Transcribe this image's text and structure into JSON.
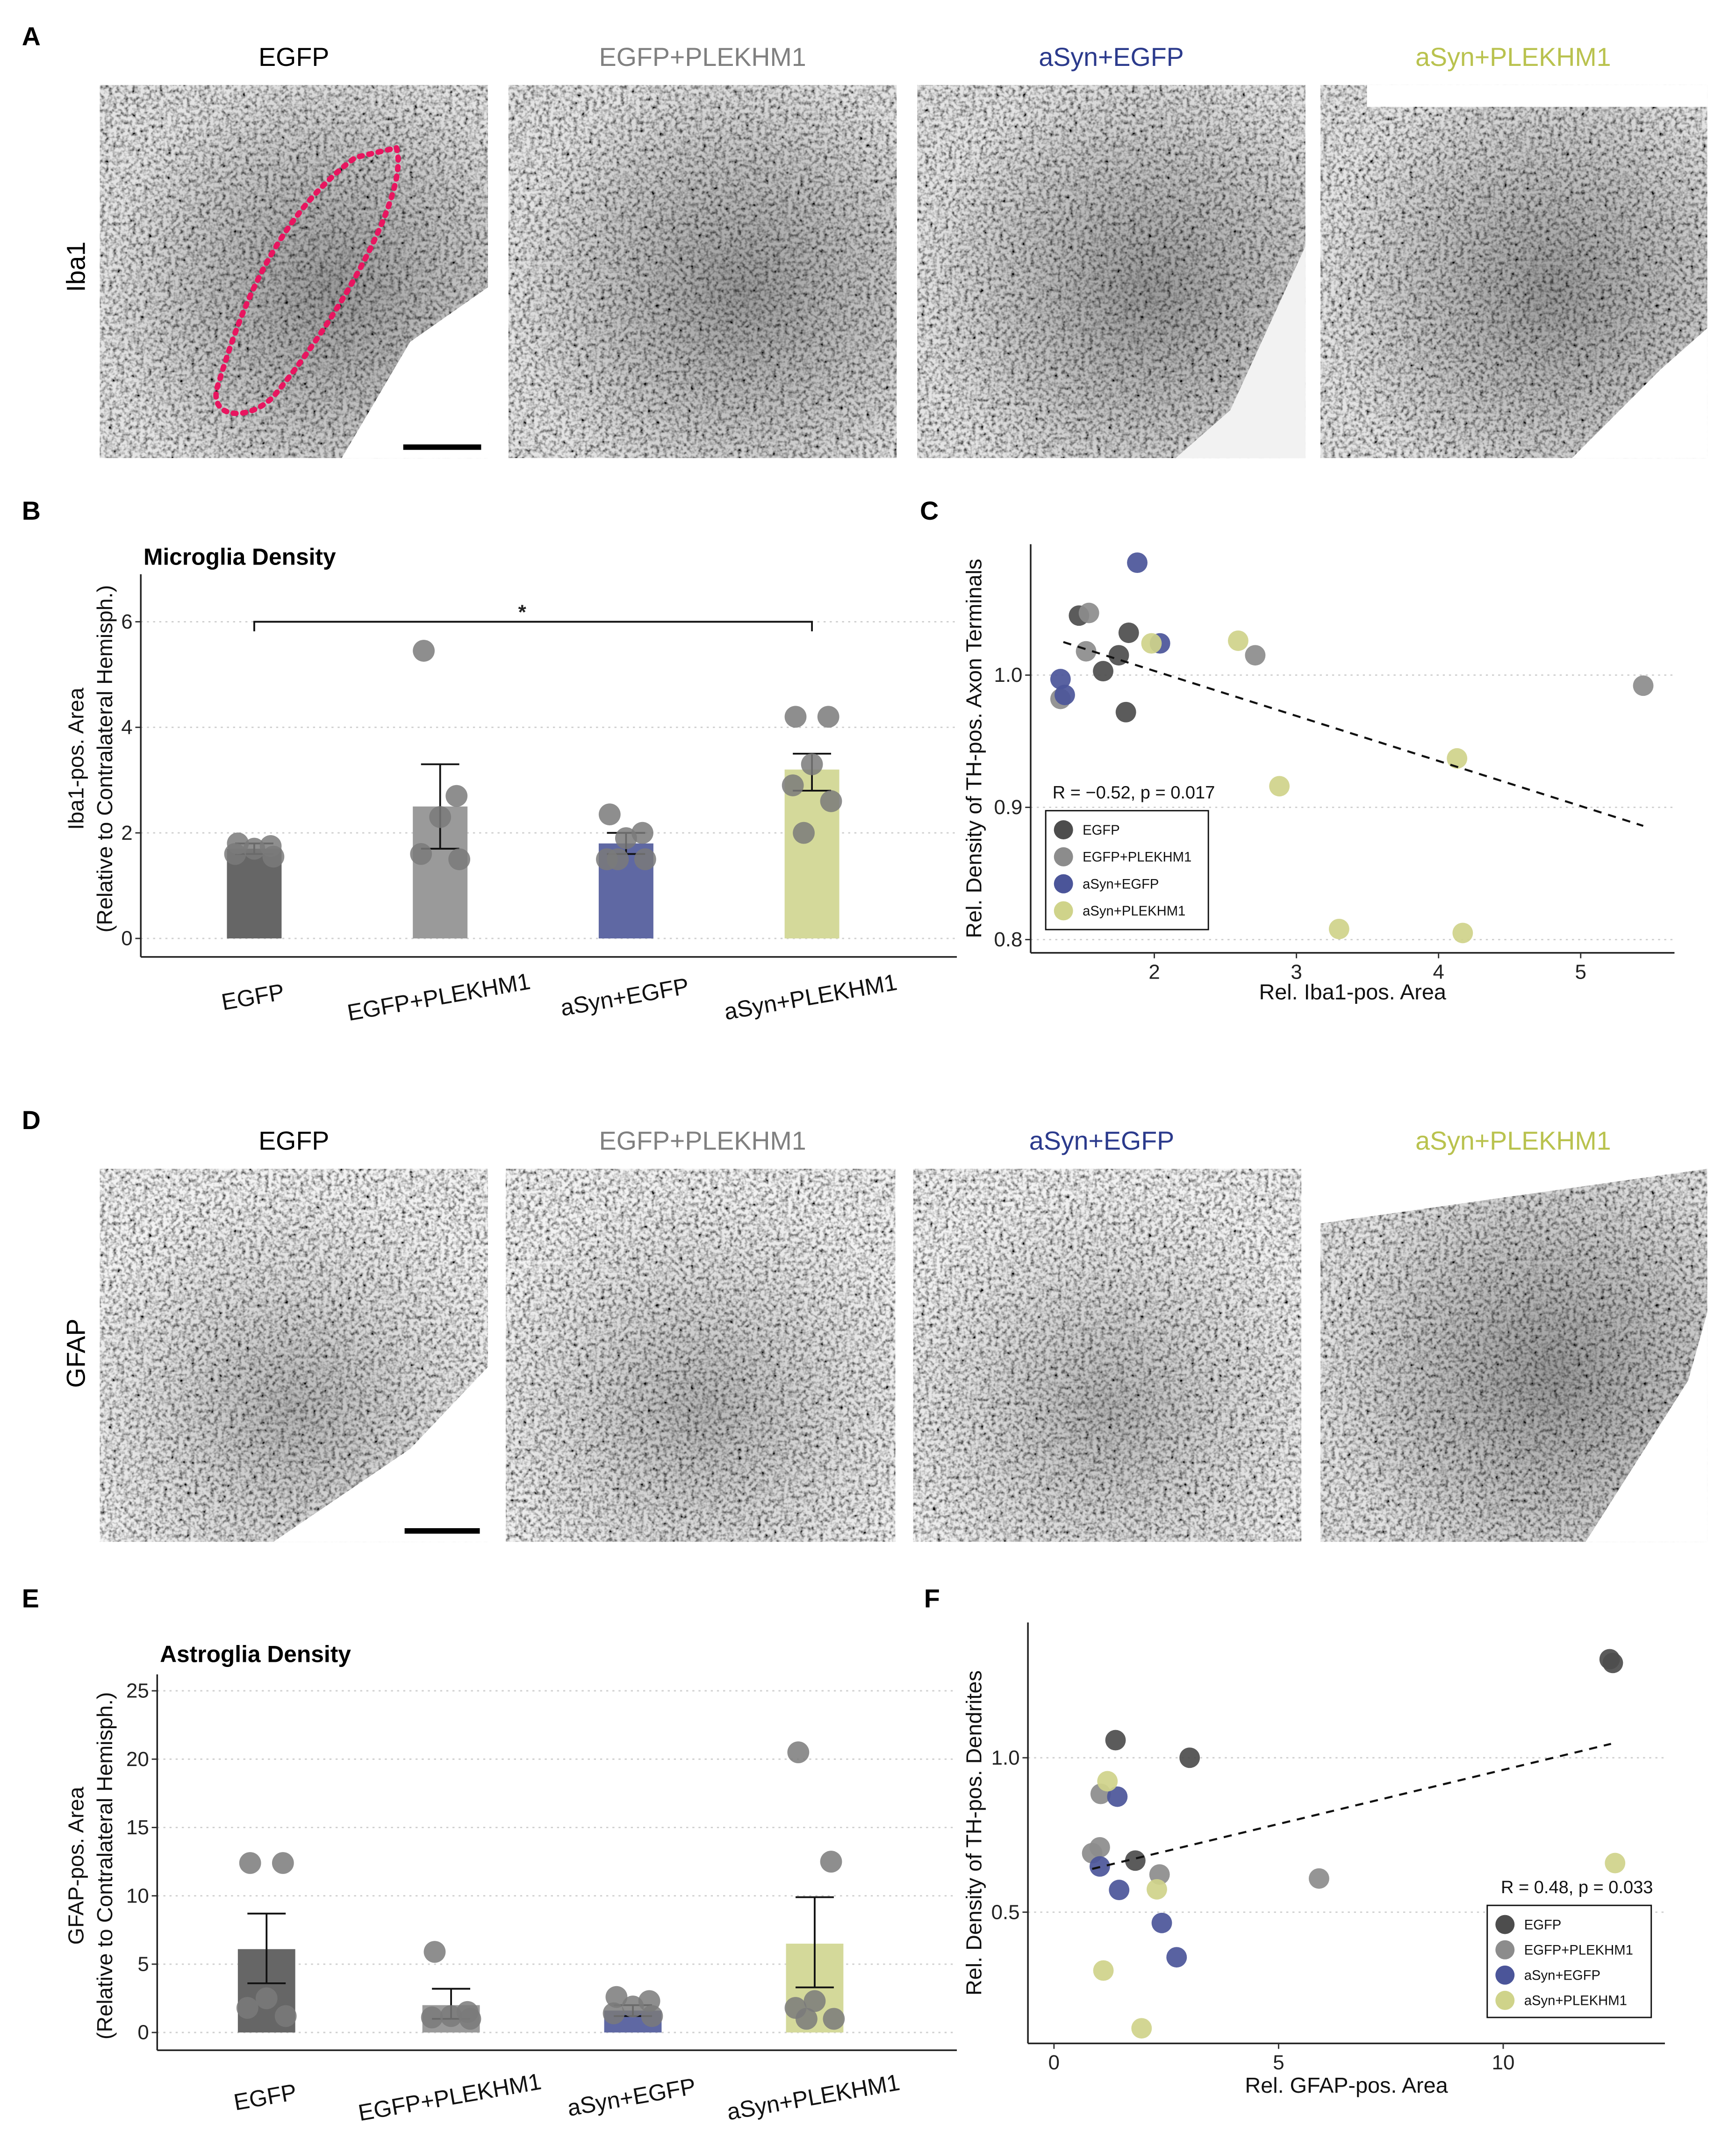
{
  "panels": {
    "A": {
      "letter": "A",
      "row_label": "Iba1",
      "conditions": [
        "EGFP",
        "EGFP+PLEKHM1",
        "aSyn+EGFP",
        "aSyn+PLEKHM1"
      ]
    },
    "D": {
      "letter": "D",
      "row_label": "GFAP",
      "conditions": [
        "EGFP",
        "EGFP+PLEKHM1",
        "aSyn+EGFP",
        "aSyn+PLEKHM1"
      ]
    },
    "B": {
      "letter": "B"
    },
    "C": {
      "letter": "C"
    },
    "E": {
      "letter": "E"
    },
    "F": {
      "letter": "F"
    }
  },
  "colors": {
    "title": [
      "#000000",
      "#808080",
      "#2b3a8c",
      "#b9c24e"
    ],
    "points": [
      "#4d4d4d",
      "#8c8c8c",
      "#4b5599",
      "#cfd38a"
    ],
    "bars": [
      "#666666",
      "#9a9a9a",
      "#5f68a3",
      "#d4d99a"
    ],
    "roi_outline": "#e8155f"
  },
  "chart_data": [
    {
      "id": "B",
      "type": "bar",
      "title": "Microglia Density",
      "ylabel": [
        "Iba1-pos. Area",
        "(Relative to Contralateral Hemisph.)"
      ],
      "xlabel": "",
      "categories": [
        "EGFP",
        "EGFP+PLEKHM1",
        "aSyn+EGFP",
        "aSyn+PLEKHM1"
      ],
      "values": [
        1.7,
        2.5,
        1.8,
        3.2
      ],
      "error_low": [
        1.6,
        1.7,
        1.6,
        2.8
      ],
      "error_high": [
        1.8,
        3.3,
        2.0,
        3.5
      ],
      "points": [
        [
          1.8,
          1.75,
          1.7,
          1.6,
          1.55
        ],
        [
          5.45,
          2.7,
          2.3,
          1.6,
          1.5
        ],
        [
          2.35,
          2.0,
          1.9,
          1.5,
          1.5,
          1.5
        ],
        [
          4.2,
          4.2,
          3.3,
          2.9,
          2.6,
          2.0
        ]
      ],
      "yticks": [
        0,
        2,
        4,
        6
      ],
      "ylim": [
        -0.35,
        6.9
      ],
      "grid": true,
      "significance": {
        "from": 0,
        "to": 3,
        "y": 6,
        "label": "*"
      }
    },
    {
      "id": "C",
      "type": "scatter",
      "xlabel": "Rel. Iba1-pos. Area",
      "ylabel": "Rel. Density of TH-pos. Axon Terminals",
      "xlim": [
        1.13,
        5.66
      ],
      "ylim": [
        0.79,
        1.099
      ],
      "xticks": [
        2,
        3,
        4,
        5
      ],
      "yticks": [
        0.8,
        0.9,
        1.0
      ],
      "ytick_labels": [
        "0.8",
        "0.9",
        "1.0"
      ],
      "annotation": "R = −0.52, p = 0.017",
      "legend_position": "bottom-left",
      "series": [
        {
          "name": "EGFP",
          "points": [
            [
              1.47,
              1.045
            ],
            [
              1.82,
              1.032
            ],
            [
              1.75,
              1.015
            ],
            [
              1.64,
              1.003
            ],
            [
              1.8,
              0.972
            ]
          ]
        },
        {
          "name": "EGFP+PLEKHM1",
          "points": [
            [
              1.54,
              1.047
            ],
            [
              1.52,
              1.018
            ],
            [
              2.71,
              1.015
            ],
            [
              5.44,
              0.992
            ],
            [
              1.34,
              0.982
            ]
          ]
        },
        {
          "name": "aSyn+EGFP",
          "points": [
            [
              1.88,
              1.085
            ],
            [
              2.04,
              1.024
            ],
            [
              1.34,
              0.997
            ],
            [
              1.37,
              0.985
            ]
          ]
        },
        {
          "name": "aSyn+PLEKHM1",
          "points": [
            [
              1.98,
              1.024
            ],
            [
              2.59,
              1.026
            ],
            [
              4.13,
              0.937
            ],
            [
              2.88,
              0.916
            ],
            [
              3.3,
              0.808
            ],
            [
              4.17,
              0.805
            ]
          ]
        }
      ],
      "fit_line": [
        [
          1.36,
          1.025
        ],
        [
          5.44,
          0.886
        ]
      ]
    },
    {
      "id": "E",
      "type": "bar",
      "title": "Astroglia Density",
      "ylabel": [
        "GFAP-pos. Area",
        "(Relative to Contralateral Hemisph.)"
      ],
      "xlabel": "",
      "categories": [
        "EGFP",
        "EGFP+PLEKHM1",
        "aSyn+EGFP",
        "aSyn+PLEKHM1"
      ],
      "values": [
        6.1,
        2.0,
        1.6,
        6.5
      ],
      "error_low": [
        3.6,
        1.0,
        1.2,
        3.3
      ],
      "error_high": [
        8.7,
        3.2,
        2.0,
        9.9
      ],
      "points": [
        [
          12.4,
          12.4,
          2.5,
          1.8,
          1.2
        ],
        [
          5.9,
          1.5,
          1.2,
          1.1,
          1.0
        ],
        [
          2.6,
          2.3,
          1.9,
          1.4,
          1.2
        ],
        [
          20.5,
          12.5,
          2.3,
          1.8,
          1.0,
          1.0
        ]
      ],
      "yticks": [
        0,
        5,
        10,
        15,
        20,
        25
      ],
      "ylim": [
        -1.3,
        26.2
      ],
      "grid": true
    },
    {
      "id": "F",
      "type": "scatter",
      "xlabel": "Rel. GFAP-pos. Area",
      "ylabel": "Rel. Density of TH-pos. Dendrites",
      "xlim": [
        -0.58,
        13.6
      ],
      "ylim": [
        0.075,
        1.438
      ],
      "xticks": [
        0,
        5,
        10
      ],
      "yticks": [
        0.5,
        1.0
      ],
      "ytick_labels": [
        "0.5",
        "1.0"
      ],
      "annotation": "R = 0.48, p = 0.033",
      "legend_position": "bottom-right",
      "series": [
        {
          "name": "EGFP",
          "points": [
            [
              12.37,
              1.319
            ],
            [
              12.44,
              1.307
            ],
            [
              1.37,
              1.057
            ],
            [
              3.02,
              1.0
            ],
            [
              1.81,
              0.667
            ]
          ]
        },
        {
          "name": "EGFP+PLEKHM1",
          "points": [
            [
              1.04,
              0.883
            ],
            [
              1.02,
              0.71
            ],
            [
              0.85,
              0.691
            ],
            [
              2.35,
              0.622
            ],
            [
              5.9,
              0.609
            ]
          ]
        },
        {
          "name": "aSyn+EGFP",
          "points": [
            [
              1.41,
              0.874
            ],
            [
              1.02,
              0.648
            ],
            [
              1.45,
              0.572
            ],
            [
              2.4,
              0.465
            ],
            [
              2.73,
              0.354
            ]
          ]
        },
        {
          "name": "aSyn+PLEKHM1",
          "points": [
            [
              1.19,
              0.924
            ],
            [
              12.49,
              0.659
            ],
            [
              2.29,
              0.574
            ],
            [
              1.1,
              0.311
            ],
            [
              1.95,
              0.124
            ]
          ]
        }
      ],
      "fit_line": [
        [
          0.85,
          0.64
        ],
        [
          12.4,
          1.045
        ]
      ]
    }
  ]
}
